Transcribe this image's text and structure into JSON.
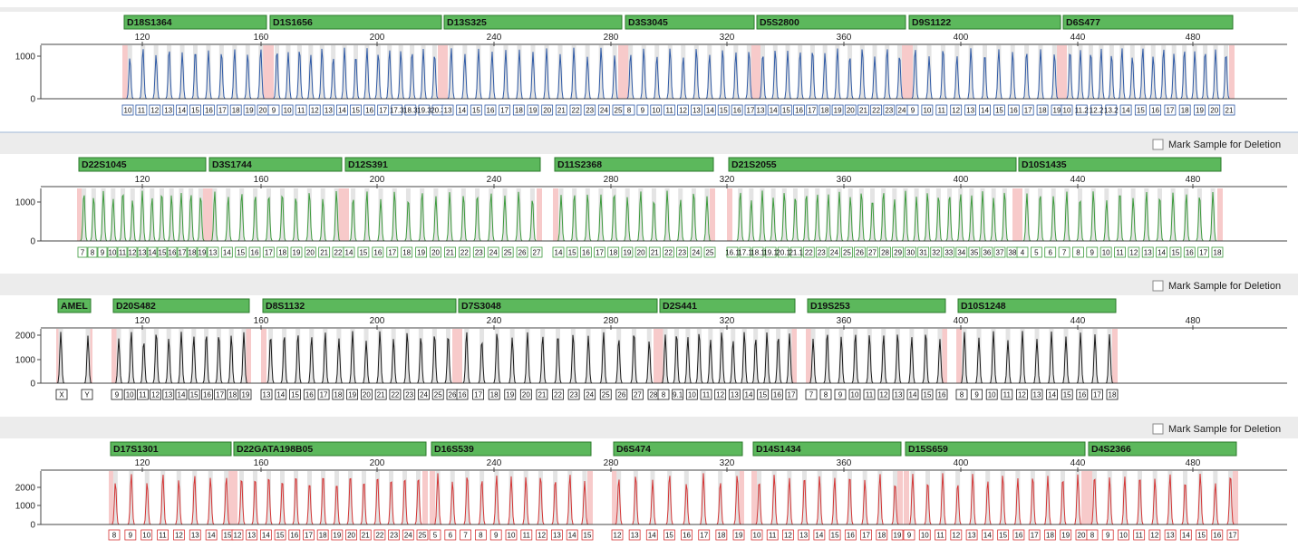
{
  "mark_deletion_label": "Mark Sample for Deletion",
  "colors": {
    "blue": "#2f5aa6",
    "green": "#3c9a3c",
    "black": "#1a1a1a",
    "red": "#d43434",
    "marker_fill": "#5cb85c",
    "bin_shade": "#e4e4e4",
    "offladder_shade": "#f7caca",
    "band_fill": "#ececec"
  },
  "x_axis": {
    "ticks": [
      "120",
      "160",
      "200",
      "240",
      "280",
      "320",
      "360",
      "400",
      "440",
      "480"
    ]
  },
  "chart_data": [
    {
      "type": "line",
      "panel": "blue",
      "has_mark_checkbox": false,
      "y_ticks": [
        "1000",
        "0"
      ],
      "ylim": [
        0,
        1300
      ],
      "markers": [
        {
          "name": "D18S1364",
          "bins": 11,
          "labels": [
            "10",
            "11",
            "12",
            "13",
            "14",
            "15",
            "16",
            "17",
            "18",
            "19",
            "20"
          ]
        },
        {
          "name": "D1S1656",
          "bins": 15,
          "labels": [
            "9",
            "10",
            "11",
            "12",
            "13",
            "14",
            "15",
            "16",
            "17",
            "17.3",
            "18.3",
            "19.3",
            "20.3"
          ]
        },
        {
          "name": "D13S325",
          "bins": 13,
          "labels": [
            "13",
            "14",
            "15",
            "16",
            "17",
            "18",
            "19",
            "20",
            "21",
            "22",
            "23",
            "24",
            "25"
          ]
        },
        {
          "name": "D3S3045",
          "bins": 10,
          "labels": [
            "8",
            "9",
            "10",
            "11",
            "12",
            "13",
            "14",
            "15",
            "16",
            "17"
          ]
        },
        {
          "name": "D5S2800",
          "bins": 12,
          "labels": [
            "13",
            "14",
            "15",
            "16",
            "17",
            "18",
            "19",
            "20",
            "21",
            "22",
            "23",
            "24"
          ]
        },
        {
          "name": "D9S1122",
          "bins": 11,
          "labels": [
            "9",
            "10",
            "11",
            "12",
            "13",
            "14",
            "15",
            "16",
            "17",
            "18",
            "19"
          ]
        },
        {
          "name": "D6S477",
          "bins": 16,
          "labels": [
            "10",
            "11.2",
            "12.2",
            "13.2",
            "14",
            "15",
            "16",
            "17",
            "18",
            "19",
            "20",
            "21"
          ]
        }
      ]
    },
    {
      "type": "line",
      "panel": "green",
      "has_mark_checkbox": true,
      "y_ticks": [
        "1000",
        "0"
      ],
      "ylim": [
        0,
        1300
      ],
      "markers": [
        {
          "name": "D22S1045",
          "bins": 13,
          "labels": [
            "7",
            "8",
            "9",
            "10",
            "11",
            "12",
            "13",
            "14",
            "15",
            "16",
            "17",
            "18",
            "19"
          ]
        },
        {
          "name": "D3S1744",
          "bins": 10,
          "labels": [
            "13",
            "14",
            "15",
            "16",
            "17",
            "18",
            "19",
            "20",
            "21",
            "22"
          ]
        },
        {
          "name": "D12S391",
          "bins": 14,
          "labels": [
            "14",
            "15",
            "16",
            "17",
            "18",
            "19",
            "20",
            "21",
            "22",
            "23",
            "24",
            "25",
            "26",
            "27"
          ]
        },
        {
          "name": "D11S2368",
          "bins": 12,
          "labels": [
            "14",
            "15",
            "16",
            "17",
            "18",
            "19",
            "20",
            "21",
            "22",
            "23",
            "24",
            "25"
          ]
        },
        {
          "name": "D21S2055",
          "bins": 25,
          "labels": [
            "16.1",
            "17.1",
            "18.1",
            "19.1",
            "20.1",
            "21.1",
            "22",
            "23",
            "24",
            "25",
            "26",
            "27",
            "28",
            "29",
            "30",
            "31",
            "32",
            "33",
            "34",
            "35",
            "36",
            "37",
            "38"
          ]
        },
        {
          "name": "D10S1435",
          "bins": 15,
          "labels": [
            "4",
            "5",
            "6",
            "7",
            "8",
            "9",
            "10",
            "11",
            "12",
            "13",
            "14",
            "15",
            "16",
            "17",
            "18"
          ]
        }
      ]
    },
    {
      "type": "line",
      "panel": "black",
      "has_mark_checkbox": true,
      "y_ticks": [
        "2000",
        "1000",
        "0"
      ],
      "ylim": [
        0,
        2300
      ],
      "markers": [
        {
          "name": "AMEL",
          "bins": 2,
          "labels": [
            "X",
            "Y"
          ]
        },
        {
          "name": "D20S482",
          "bins": 11,
          "labels": [
            "9",
            "10",
            "11",
            "12",
            "13",
            "14",
            "15",
            "16",
            "17",
            "18",
            "19"
          ]
        },
        {
          "name": "D8S1132",
          "bins": 14,
          "labels": [
            "13",
            "14",
            "15",
            "16",
            "17",
            "18",
            "19",
            "20",
            "21",
            "22",
            "23",
            "24",
            "25",
            "26"
          ]
        },
        {
          "name": "D7S3048",
          "bins": 13,
          "labels": [
            "16",
            "17",
            "18",
            "19",
            "20",
            "21",
            "22",
            "23",
            "24",
            "25",
            "26",
            "27",
            "28"
          ]
        },
        {
          "name": "D2S441",
          "bins": 12,
          "labels": [
            "8",
            "9.1",
            "10",
            "11",
            "12",
            "13",
            "14",
            "15",
            "16",
            "17"
          ]
        },
        {
          "name": "D19S253",
          "bins": 10,
          "labels": [
            "7",
            "8",
            "9",
            "10",
            "11",
            "12",
            "13",
            "14",
            "15",
            "16"
          ]
        },
        {
          "name": "D10S1248",
          "bins": 11,
          "labels": [
            "8",
            "9",
            "10",
            "11",
            "12",
            "13",
            "14",
            "15",
            "16",
            "17",
            "18"
          ]
        }
      ]
    },
    {
      "type": "line",
      "panel": "red",
      "has_mark_checkbox": true,
      "y_ticks": [
        "2000",
        "1000",
        "0"
      ],
      "ylim": [
        0,
        2800
      ],
      "markers": [
        {
          "name": "D17S1301",
          "bins": 8,
          "labels": [
            "8",
            "9",
            "10",
            "11",
            "12",
            "13",
            "14",
            "15"
          ]
        },
        {
          "name": "D22GATA198B05",
          "bins": 14,
          "labels": [
            "12",
            "13",
            "14",
            "15",
            "16",
            "17",
            "18",
            "19",
            "20",
            "21",
            "22",
            "23",
            "24",
            "25"
          ]
        },
        {
          "name": "D16S539",
          "bins": 11,
          "labels": [
            "5",
            "6",
            "7",
            "8",
            "9",
            "10",
            "11",
            "12",
            "13",
            "14",
            "15"
          ]
        },
        {
          "name": "D6S474",
          "bins": 8,
          "labels": [
            "12",
            "13",
            "14",
            "15",
            "16",
            "17",
            "18",
            "19"
          ]
        },
        {
          "name": "D14S1434",
          "bins": 10,
          "labels": [
            "10",
            "11",
            "12",
            "13",
            "14",
            "15",
            "16",
            "17",
            "18",
            "19"
          ]
        },
        {
          "name": "D15S659",
          "bins": 12,
          "labels": [
            "9",
            "10",
            "11",
            "12",
            "13",
            "14",
            "15",
            "16",
            "17",
            "18",
            "19",
            "20"
          ]
        },
        {
          "name": "D4S2366",
          "bins": 10,
          "labels": [
            "8",
            "9",
            "10",
            "11",
            "12",
            "13",
            "14",
            "15",
            "16",
            "17"
          ]
        }
      ]
    }
  ]
}
